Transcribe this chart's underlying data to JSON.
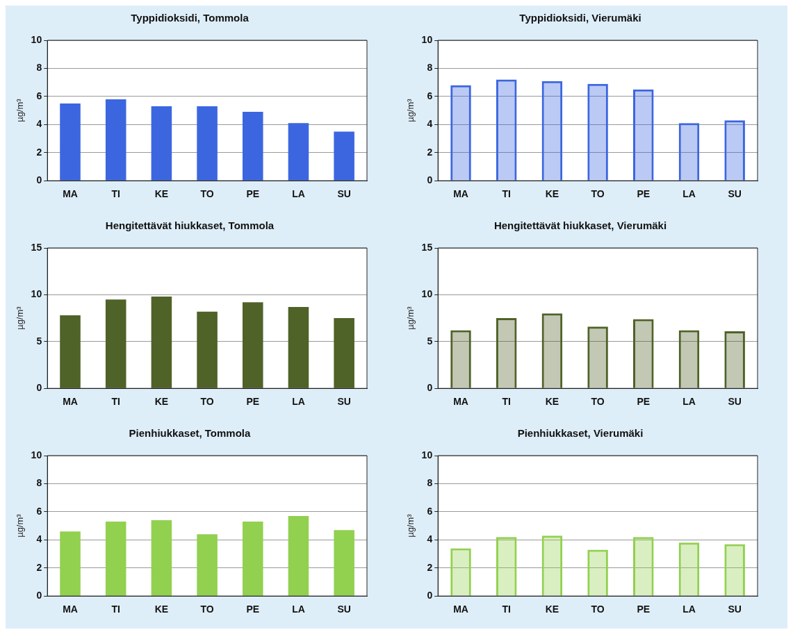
{
  "chart_data": [
    {
      "type": "bar",
      "title": "Typpidioksidi, Tommola",
      "ylabel": "µg/m³",
      "categories": [
        "MA",
        "TI",
        "KE",
        "TO",
        "PE",
        "LA",
        "SU"
      ],
      "values": [
        5.5,
        5.8,
        5.3,
        5.3,
        4.9,
        4.1,
        3.5
      ],
      "color": "#3c66e0",
      "ylim": [
        0,
        10
      ],
      "yticks": [
        0,
        2,
        4,
        6,
        8,
        10
      ],
      "grid": "y"
    },
    {
      "type": "bar",
      "title": "Typpidioksidi, Vierumäki",
      "ylabel": "µg/m³",
      "categories": [
        "MA",
        "TI",
        "KE",
        "TO",
        "PE",
        "LA",
        "SU"
      ],
      "values": [
        6.8,
        7.2,
        7.1,
        6.9,
        6.5,
        4.1,
        4.3
      ],
      "color": "#3c66e0",
      "ylim": [
        0,
        10
      ],
      "yticks": [
        0,
        2,
        4,
        6,
        8,
        10
      ],
      "grid": "y"
    },
    {
      "type": "bar",
      "title": "Hengitettävät hiukkaset, Tommola",
      "ylabel": "µg/m³",
      "categories": [
        "MA",
        "TI",
        "KE",
        "TO",
        "PE",
        "LA",
        "SU"
      ],
      "values": [
        7.8,
        9.5,
        9.8,
        8.2,
        9.2,
        8.7,
        7.5
      ],
      "color": "#4f6228",
      "ylim": [
        0,
        15
      ],
      "yticks": [
        0,
        5,
        10,
        15
      ],
      "grid": "y"
    },
    {
      "type": "bar",
      "title": "Hengitettävät hiukkaset, Vierumäki",
      "ylabel": "µg/m³",
      "categories": [
        "MA",
        "TI",
        "KE",
        "TO",
        "PE",
        "LA",
        "SU"
      ],
      "values": [
        6.2,
        7.5,
        8.0,
        6.6,
        7.4,
        6.2,
        6.1
      ],
      "color": "#4f6228",
      "ylim": [
        0,
        15
      ],
      "yticks": [
        0,
        5,
        10,
        15
      ],
      "grid": "y"
    },
    {
      "type": "bar",
      "title": "Pienhiukkaset, Tommola",
      "ylabel": "µg/m³",
      "categories": [
        "MA",
        "TI",
        "KE",
        "TO",
        "PE",
        "LA",
        "SU"
      ],
      "values": [
        4.6,
        5.3,
        5.4,
        4.4,
        5.3,
        5.7,
        4.7
      ],
      "color": "#92d050",
      "ylim": [
        0,
        10
      ],
      "yticks": [
        0,
        2,
        4,
        6,
        8,
        10
      ],
      "grid": "y"
    },
    {
      "type": "bar",
      "title": "Pienhiukkaset, Vierumäki",
      "ylabel": "µg/m³",
      "categories": [
        "MA",
        "TI",
        "KE",
        "TO",
        "PE",
        "LA",
        "SU"
      ],
      "values": [
        3.4,
        4.2,
        4.3,
        3.3,
        4.2,
        3.8,
        3.7
      ],
      "color": "#92d050",
      "ylim": [
        0,
        10
      ],
      "yticks": [
        0,
        2,
        4,
        6,
        8,
        10
      ],
      "grid": "y"
    }
  ]
}
